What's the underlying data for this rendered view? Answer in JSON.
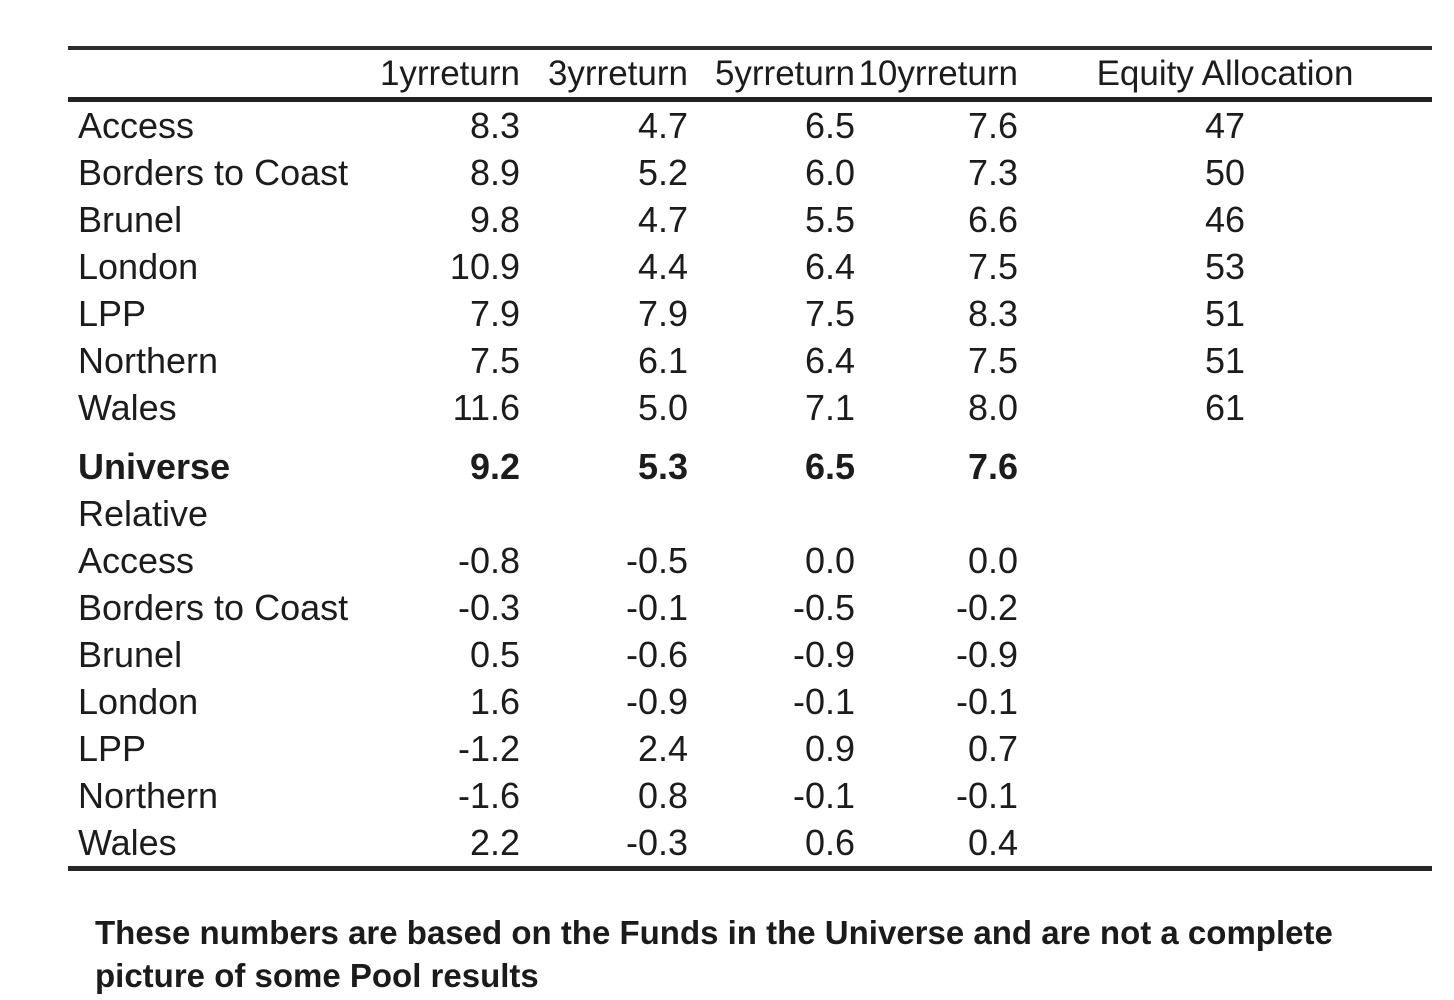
{
  "table": {
    "columns": [
      "",
      "1yrreturn",
      "3yrreturn",
      "5yrreturn",
      "10yrreturn",
      "Equity Allocation"
    ],
    "rows": [
      {
        "name": "Access",
        "values": [
          "8.3",
          "4.7",
          "6.5",
          "7.6",
          "47"
        ]
      },
      {
        "name": "Borders to Coast",
        "values": [
          "8.9",
          "5.2",
          "6.0",
          "7.3",
          "50"
        ]
      },
      {
        "name": "Brunel",
        "values": [
          "9.8",
          "4.7",
          "5.5",
          "6.6",
          "46"
        ]
      },
      {
        "name": "London",
        "values": [
          "10.9",
          "4.4",
          "6.4",
          "7.5",
          "53"
        ]
      },
      {
        "name": "LPP",
        "values": [
          "7.9",
          "7.9",
          "7.5",
          "8.3",
          "51"
        ]
      },
      {
        "name": "Northern",
        "values": [
          "7.5",
          "6.1",
          "6.4",
          "7.5",
          "51"
        ]
      },
      {
        "name": "Wales",
        "values": [
          "11.6",
          "5.0",
          "7.1",
          "8.0",
          "61"
        ]
      },
      {
        "name": "Universe",
        "values": [
          "9.2",
          "5.3",
          "6.5",
          "7.6",
          ""
        ],
        "bold": true,
        "gap_before": true
      },
      {
        "name": "Relative",
        "values": [
          "",
          "",
          "",
          "",
          ""
        ]
      },
      {
        "name": "Access",
        "values": [
          "-0.8",
          "-0.5",
          "0.0",
          "0.0",
          ""
        ]
      },
      {
        "name": "Borders to Coast",
        "values": [
          "-0.3",
          "-0.1",
          "-0.5",
          "-0.2",
          ""
        ]
      },
      {
        "name": "Brunel",
        "values": [
          "0.5",
          "-0.6",
          "-0.9",
          "-0.9",
          ""
        ]
      },
      {
        "name": "London",
        "values": [
          "1.6",
          "-0.9",
          "-0.1",
          "-0.1",
          ""
        ]
      },
      {
        "name": "LPP",
        "values": [
          "-1.2",
          "2.4",
          "0.9",
          "0.7",
          ""
        ]
      },
      {
        "name": "Northern",
        "values": [
          "-1.6",
          "0.8",
          "-0.1",
          "-0.1",
          ""
        ]
      },
      {
        "name": "Wales",
        "values": [
          "2.2",
          "-0.3",
          "0.6",
          "0.4",
          ""
        ]
      }
    ]
  },
  "footnote": "These numbers are based on the Funds in the Universe and are not a complete picture of some Pool results",
  "colors": {
    "text": "#1c1c1c",
    "rule": "#2e2e2e",
    "background": "#ffffff"
  }
}
